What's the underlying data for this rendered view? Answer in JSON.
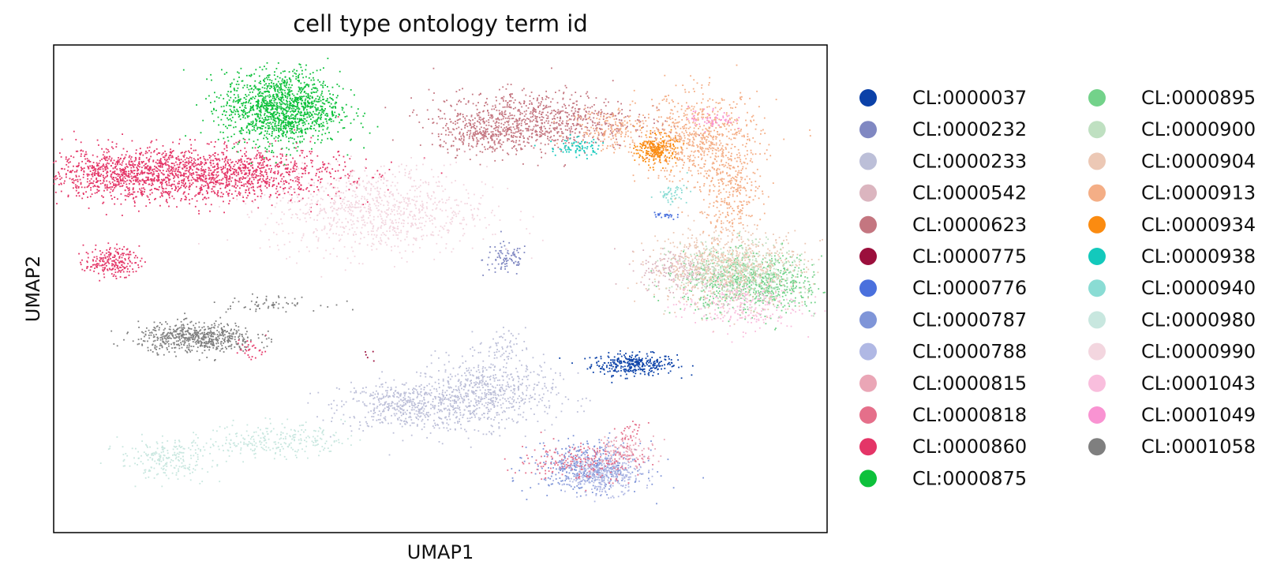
{
  "chart_data": {
    "type": "scatter",
    "title": "cell type ontology term id",
    "xlabel": "UMAP1",
    "ylabel": "UMAP2",
    "xlim": [
      -10,
      10
    ],
    "ylim": [
      -10,
      10
    ],
    "grid": false,
    "legend": "right",
    "series": [
      {
        "name": "CL:0000037",
        "color": "#0b41a8",
        "clusters": [
          {
            "x": 5.0,
            "y": -3.1,
            "sx": 0.55,
            "sy": 0.22,
            "n": 320
          }
        ]
      },
      {
        "name": "CL:0000232",
        "color": "#8088c2",
        "clusters": [
          {
            "x": 1.7,
            "y": 1.2,
            "sx": 0.3,
            "sy": 0.35,
            "n": 90
          }
        ]
      },
      {
        "name": "CL:0000233",
        "color": "#bcbfd8",
        "clusters": [
          {
            "x": -0.8,
            "y": -4.8,
            "sx": 0.9,
            "sy": 0.5,
            "n": 520
          },
          {
            "x": 1.2,
            "y": -4.3,
            "sx": 0.9,
            "sy": 0.7,
            "n": 620
          },
          {
            "x": 1.6,
            "y": -2.4,
            "sx": 0.3,
            "sy": 0.4,
            "n": 60
          }
        ]
      },
      {
        "name": "CL:0000542",
        "color": "#dbb5bf",
        "clusters": [
          {
            "x": 6.2,
            "y": 0.8,
            "sx": 0.5,
            "sy": 0.4,
            "n": 200
          }
        ]
      },
      {
        "name": "CL:0000623",
        "color": "#c47680",
        "clusters": [
          {
            "x": 2.4,
            "y": 6.9,
            "sx": 1.3,
            "sy": 0.6,
            "n": 900
          },
          {
            "x": 1.2,
            "y": 6.2,
            "sx": 0.6,
            "sy": 0.35,
            "n": 200
          }
        ]
      },
      {
        "name": "CL:0000775",
        "color": "#9b0f3c",
        "clusters": [
          {
            "x": -1.8,
            "y": -2.8,
            "sx": 0.2,
            "sy": 0.2,
            "n": 5
          }
        ]
      },
      {
        "name": "CL:0000776",
        "color": "#4a70dd",
        "clusters": [
          {
            "x": 5.8,
            "y": 3.0,
            "sx": 0.15,
            "sy": 0.1,
            "n": 25
          }
        ]
      },
      {
        "name": "CL:0000787",
        "color": "#7f95d8",
        "clusters": [
          {
            "x": 3.8,
            "y": -7.3,
            "sx": 0.7,
            "sy": 0.5,
            "n": 420
          }
        ]
      },
      {
        "name": "CL:0000788",
        "color": "#b0b8e4",
        "clusters": [
          {
            "x": 4.2,
            "y": -7.6,
            "sx": 0.5,
            "sy": 0.4,
            "n": 360
          }
        ]
      },
      {
        "name": "CL:0000815",
        "color": "#eaa6b6",
        "clusters": [
          {
            "x": 4.8,
            "y": -6.6,
            "sx": 0.4,
            "sy": 0.3,
            "n": 120
          }
        ]
      },
      {
        "name": "CL:0000818",
        "color": "#e56f8a",
        "clusters": [
          {
            "x": 3.6,
            "y": -7.1,
            "sx": 0.8,
            "sy": 0.4,
            "n": 200
          },
          {
            "x": 4.9,
            "y": -5.9,
            "sx": 0.2,
            "sy": 0.3,
            "n": 30
          }
        ]
      },
      {
        "name": "CL:0000860",
        "color": "#e43567",
        "clusters": [
          {
            "x": -8.3,
            "y": 4.7,
            "sx": 1.0,
            "sy": 0.5,
            "n": 700
          },
          {
            "x": -5.7,
            "y": 4.7,
            "sx": 1.6,
            "sy": 0.55,
            "n": 1300
          },
          {
            "x": -8.5,
            "y": 1.1,
            "sx": 0.35,
            "sy": 0.3,
            "n": 220
          },
          {
            "x": -4.9,
            "y": -2.5,
            "sx": 0.2,
            "sy": 0.25,
            "n": 30
          }
        ]
      },
      {
        "name": "CL:0000875",
        "color": "#0dc13b",
        "clusters": [
          {
            "x": -4.1,
            "y": 7.4,
            "sx": 0.75,
            "sy": 0.75,
            "n": 1400
          }
        ]
      },
      {
        "name": "CL:0000895",
        "color": "#73d28a",
        "clusters": [
          {
            "x": 8.1,
            "y": 0.2,
            "sx": 0.9,
            "sy": 0.6,
            "n": 700
          }
        ]
      },
      {
        "name": "CL:0000900",
        "color": "#bfe0c1",
        "clusters": [
          {
            "x": 7.6,
            "y": 0.7,
            "sx": 0.8,
            "sy": 0.6,
            "n": 500
          }
        ]
      },
      {
        "name": "CL:0000904",
        "color": "#ecc8b5",
        "clusters": [
          {
            "x": 7.4,
            "y": 0.9,
            "sx": 1.0,
            "sy": 0.8,
            "n": 700
          }
        ]
      },
      {
        "name": "CL:0000913",
        "color": "#f4ae86",
        "clusters": [
          {
            "x": 6.7,
            "y": 6.2,
            "sx": 0.8,
            "sy": 0.9,
            "n": 700
          },
          {
            "x": 7.5,
            "y": 4.0,
            "sx": 0.4,
            "sy": 0.9,
            "n": 300
          },
          {
            "x": 4.3,
            "y": 6.6,
            "sx": 0.5,
            "sy": 0.5,
            "n": 150
          }
        ]
      },
      {
        "name": "CL:0000934",
        "color": "#fb8b10",
        "clusters": [
          {
            "x": 5.6,
            "y": 5.7,
            "sx": 0.25,
            "sy": 0.3,
            "n": 260
          }
        ]
      },
      {
        "name": "CL:0000938",
        "color": "#13c9bc",
        "clusters": [
          {
            "x": 3.5,
            "y": 5.8,
            "sx": 0.35,
            "sy": 0.2,
            "n": 80
          }
        ]
      },
      {
        "name": "CL:0000940",
        "color": "#8adcd4",
        "clusters": [
          {
            "x": 6.0,
            "y": 3.9,
            "sx": 0.2,
            "sy": 0.2,
            "n": 50
          }
        ]
      },
      {
        "name": "CL:0000980",
        "color": "#c8e7df",
        "clusters": [
          {
            "x": -7.1,
            "y": -7.0,
            "sx": 0.6,
            "sy": 0.4,
            "n": 220
          },
          {
            "x": -4.3,
            "y": -6.2,
            "sx": 0.9,
            "sy": 0.35,
            "n": 260
          }
        ]
      },
      {
        "name": "CL:0000990",
        "color": "#f3d6df",
        "clusters": [
          {
            "x": -1.6,
            "y": 3.2,
            "sx": 1.4,
            "sy": 0.9,
            "n": 900
          }
        ]
      },
      {
        "name": "CL:0001043",
        "color": "#f9bedd",
        "clusters": [
          {
            "x": 7.7,
            "y": -0.7,
            "sx": 0.8,
            "sy": 0.5,
            "n": 260
          }
        ]
      },
      {
        "name": "CL:0001049",
        "color": "#f993d2",
        "clusters": [
          {
            "x": 7.0,
            "y": 7.0,
            "sx": 0.3,
            "sy": 0.25,
            "n": 60
          }
        ]
      },
      {
        "name": "CL:0001058",
        "color": "#7f7f7f",
        "clusters": [
          {
            "x": -6.3,
            "y": -2.0,
            "sx": 0.75,
            "sy": 0.3,
            "n": 600
          },
          {
            "x": -4.5,
            "y": -0.6,
            "sx": 0.7,
            "sy": 0.15,
            "n": 60
          }
        ]
      }
    ]
  }
}
